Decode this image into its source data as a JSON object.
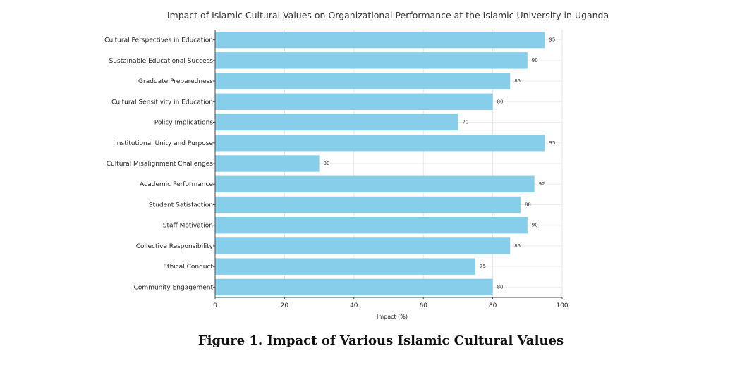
{
  "figure": {
    "caption": "Figure 1. Impact of Various Islamic Cultural Values"
  },
  "chart_data": {
    "type": "bar",
    "orientation": "horizontal",
    "title": "Impact of Islamic Cultural Values on Organizational Performance at the Islamic University in Uganda",
    "xlabel": "Impact (%)",
    "ylabel": "",
    "xlim": [
      0,
      100
    ],
    "xticks": [
      0,
      20,
      40,
      60,
      80,
      100
    ],
    "grid": true,
    "bar_color": "#87ceeb",
    "categories": [
      "Cultural Perspectives in Education",
      "Sustainable Educational Success",
      "Graduate Preparedness",
      "Cultural Sensitivity in Education",
      "Policy Implications",
      "Institutional Unity and Purpose",
      "Cultural Misalignment Challenges",
      "Academic Performance",
      "Student Satisfaction",
      "Staff Motivation",
      "Collective Responsibility",
      "Ethical Conduct",
      "Community Engagement"
    ],
    "values": [
      95,
      90,
      85,
      80,
      70,
      95,
      30,
      92,
      88,
      90,
      85,
      75,
      80
    ]
  }
}
